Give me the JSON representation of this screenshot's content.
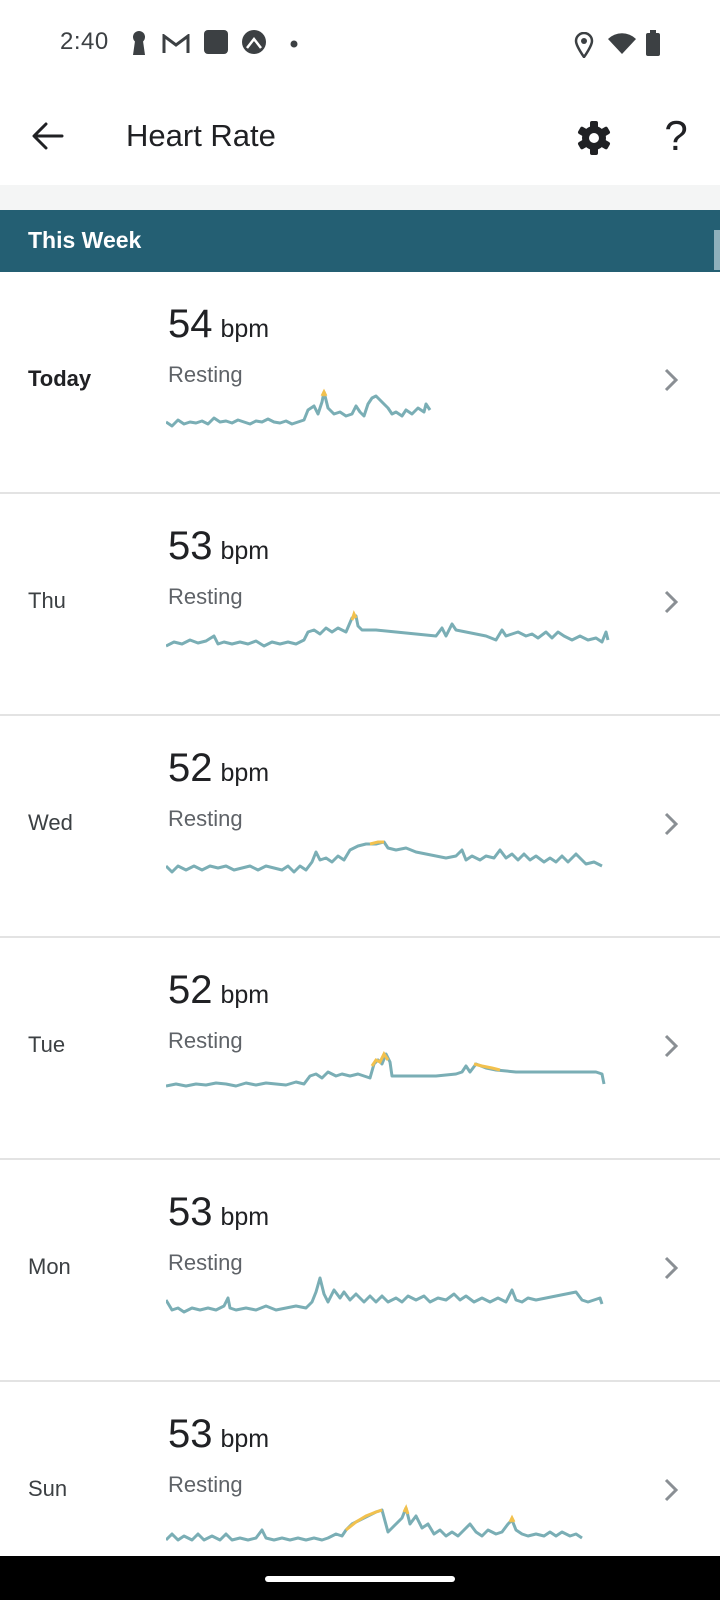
{
  "status_bar": {
    "time": "2:40",
    "left_icons": [
      "keyhole-icon",
      "gmail-icon",
      "app-square-icon",
      "app-circle-icon",
      "dot-icon"
    ],
    "right_icons": [
      "location-icon",
      "wifi-icon",
      "battery-icon"
    ]
  },
  "app_bar": {
    "title": "Heart Rate",
    "back_icon": "arrow-back-icon",
    "settings_icon": "gear-icon",
    "help_label": "?"
  },
  "section": {
    "title": "This Week"
  },
  "accent_colors": {
    "header": "#245f73",
    "sparkline": "#7aaeb5",
    "highlight": "#f2c14e"
  },
  "days": [
    {
      "day": "Today",
      "bpm": "54",
      "unit": "bpm",
      "label": "Resting",
      "bold": true
    },
    {
      "day": "Thu",
      "bpm": "53",
      "unit": "bpm",
      "label": "Resting",
      "bold": false
    },
    {
      "day": "Wed",
      "bpm": "52",
      "unit": "bpm",
      "label": "Resting",
      "bold": false
    },
    {
      "day": "Tue",
      "bpm": "52",
      "unit": "bpm",
      "label": "Resting",
      "bold": false
    },
    {
      "day": "Mon",
      "bpm": "53",
      "unit": "bpm",
      "label": "Resting",
      "bold": false
    },
    {
      "day": "Sun",
      "bpm": "53",
      "unit": "bpm",
      "label": "Resting",
      "bold": false
    }
  ]
}
